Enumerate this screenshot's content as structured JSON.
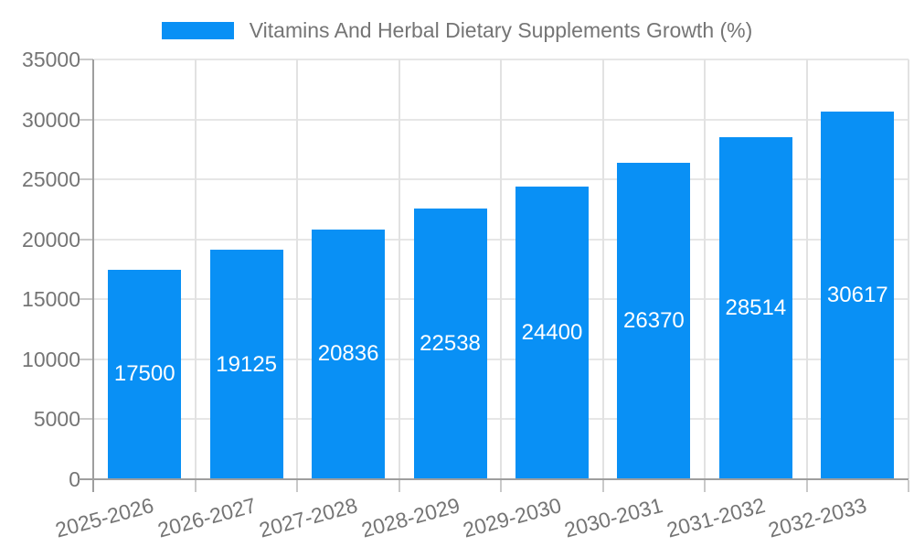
{
  "legend": {
    "label": "Vitamins And Herbal Dietary Supplements Growth (%)"
  },
  "colors": {
    "accent": "#0990F5",
    "axis_text": "#757575",
    "bar_value_text": "#ffffff",
    "grid_line": "#e6e6e6",
    "axis_line": "#9e9e9e"
  },
  "chart_data": {
    "type": "bar",
    "title": "Vitamins And Herbal Dietary Supplements Growth (%)",
    "categories": [
      "2025-2026",
      "2026-2027",
      "2027-2028",
      "2028-2029",
      "2029-2030",
      "2030-2031",
      "2031-2032",
      "2032-2033"
    ],
    "values": [
      17500,
      19125,
      20836,
      22538,
      24400,
      26370,
      28514,
      30617
    ],
    "value_labels": [
      "17500",
      "19125",
      "20836",
      "22538",
      "24400",
      "26370",
      "28514",
      "30617"
    ],
    "xlabel": "",
    "ylabel": "",
    "ylim": [
      0,
      35000
    ],
    "yticks": [
      0,
      5000,
      10000,
      15000,
      20000,
      25000,
      30000,
      35000
    ],
    "ytick_labels": [
      "0",
      "5000",
      "10000",
      "15000",
      "20000",
      "25000",
      "30000",
      "35000"
    ],
    "grid": true,
    "legend_position": "top-center",
    "bar_color": "#0990F5",
    "value_label_position": "inside-center",
    "x_label_rotation_deg": -15
  }
}
